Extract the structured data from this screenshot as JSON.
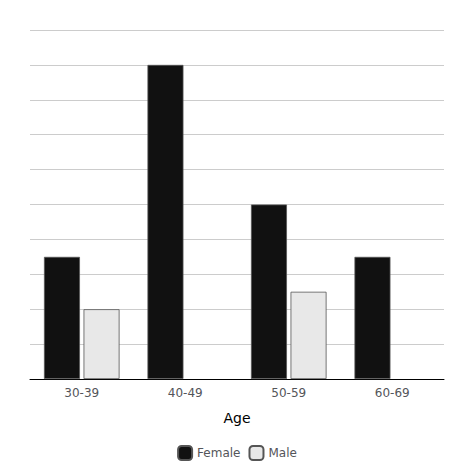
{
  "chart_data": {
    "type": "bar",
    "categories": [
      "30-39",
      "40-49",
      "50-59",
      "60-69"
    ],
    "series": [
      {
        "name": "Female",
        "color": "#111111",
        "values": [
          7,
          18,
          10,
          7
        ]
      },
      {
        "name": "Male",
        "color": "#e8e8e8",
        "values": [
          4,
          0,
          5,
          0
        ]
      }
    ],
    "xlabel": "Age",
    "ylim": [
      0,
      20
    ],
    "yticks": [
      0,
      2,
      4,
      6,
      8,
      10,
      12,
      14,
      16,
      18,
      20
    ],
    "grid": true,
    "legend": "bottom",
    "tick_labels": "x"
  }
}
